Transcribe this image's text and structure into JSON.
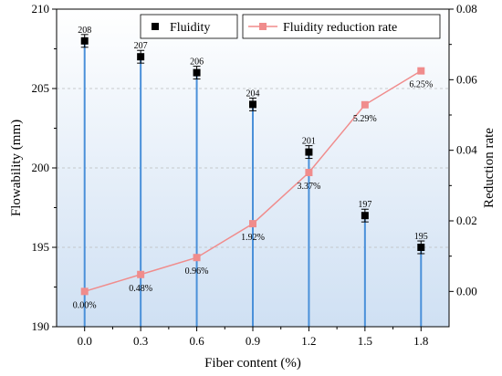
{
  "chart_data": {
    "type": "bar+line",
    "x": [
      "0.0",
      "0.3",
      "0.6",
      "0.9",
      "1.2",
      "1.5",
      "1.8"
    ],
    "x_values": [
      0.0,
      0.3,
      0.6,
      0.9,
      1.2,
      1.5,
      1.8
    ],
    "xlabel": "Fiber content (%)",
    "ylabel_left": "Flowability (mm)",
    "ylabel_right": "Reduction rate",
    "ylim_left": [
      190,
      210
    ],
    "ylim_right": [
      -0.01,
      0.08
    ],
    "yticks_left": [
      "190",
      "195",
      "200",
      "205",
      "210"
    ],
    "yticks_right": [
      "0.00",
      "0.02",
      "0.04",
      "0.06",
      "0.08"
    ],
    "grid": "horizontal dashed",
    "legend_placement": "top",
    "series": [
      {
        "name": "Fluidity",
        "axis": "left",
        "marker": "square",
        "color": "#000000",
        "stem_color": "#4a90d9",
        "values": [
          208,
          207,
          206,
          204,
          201,
          197,
          195
        ],
        "labels": [
          "208",
          "207",
          "206",
          "204",
          "201",
          "197",
          "195"
        ],
        "error": [
          0.4,
          0.4,
          0.4,
          0.4,
          0.4,
          0.4,
          0.4
        ]
      },
      {
        "name": "Fluidity reduction rate",
        "axis": "right",
        "marker": "square",
        "color": "#f08c8c",
        "values": [
          0.0,
          0.0048,
          0.0096,
          0.0192,
          0.0337,
          0.0529,
          0.0625
        ],
        "labels": [
          "0.00%",
          "0.48%",
          "0.96%",
          "1.92%",
          "3.37%",
          "5.29%",
          "6.25%"
        ]
      }
    ]
  }
}
